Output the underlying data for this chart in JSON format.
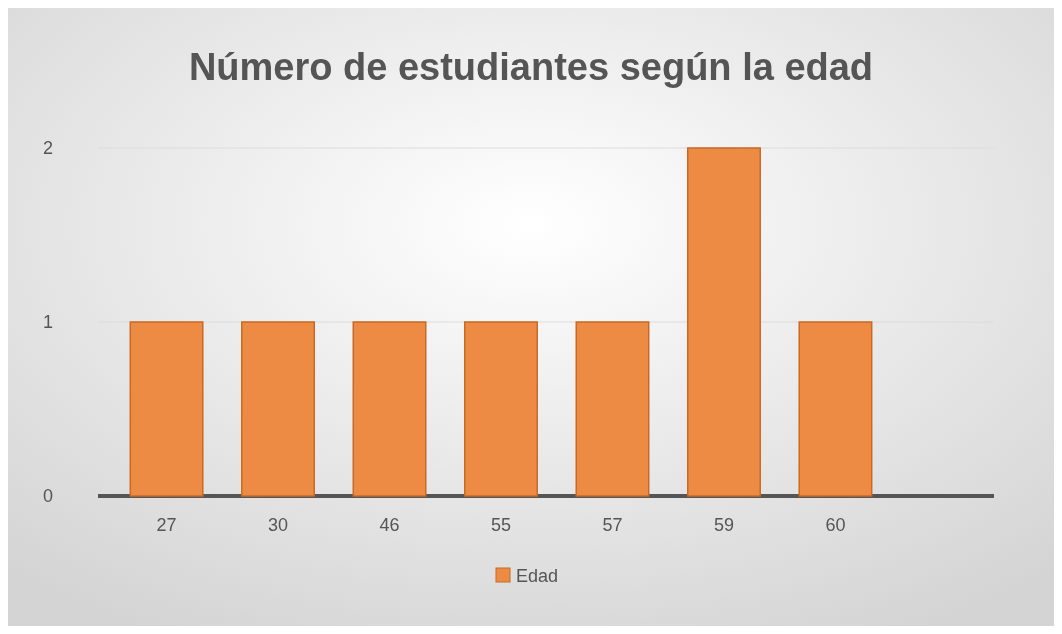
{
  "chart_data": {
    "type": "bar",
    "title": "Número de estudiantes según la edad",
    "categories": [
      "27",
      "30",
      "46",
      "55",
      "57",
      "59",
      "60"
    ],
    "series": [
      {
        "name": "Edad",
        "color": "#ed8b45",
        "values": [
          1,
          1,
          1,
          1,
          1,
          2,
          1
        ]
      }
    ],
    "ylim": [
      0,
      2
    ],
    "yticks": [
      0,
      1,
      2
    ],
    "grid": "y",
    "legend": "bottom"
  }
}
